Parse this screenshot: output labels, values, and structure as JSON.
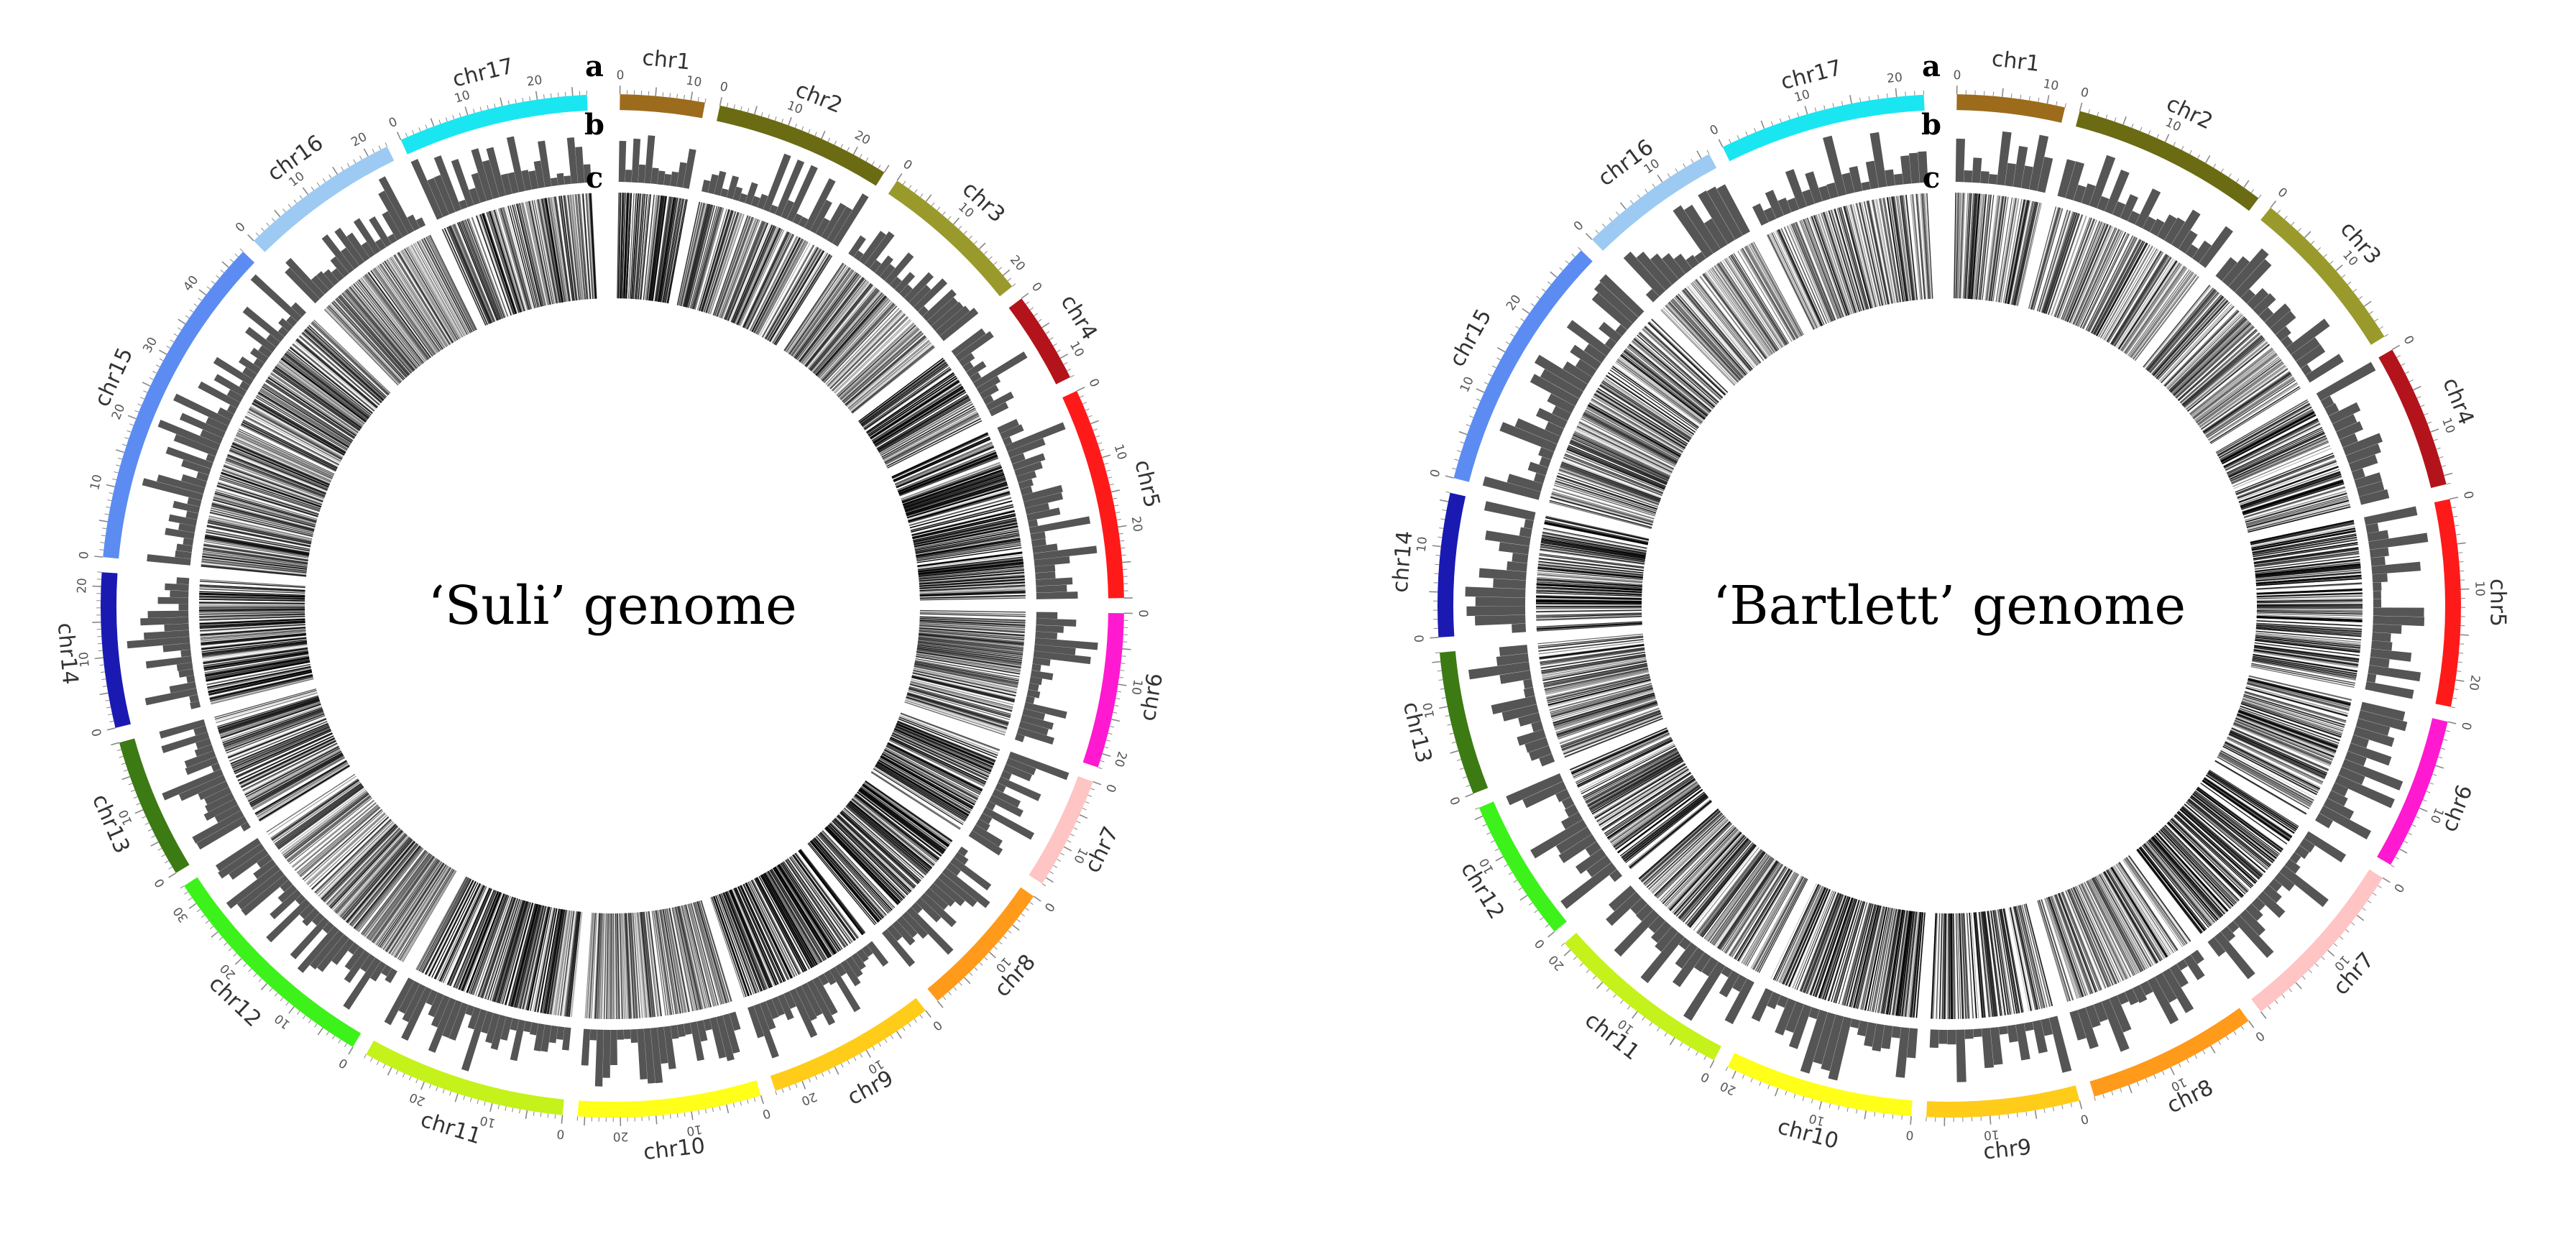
{
  "figure": {
    "track_labels": [
      "a",
      "b",
      "c"
    ],
    "panels": [
      {
        "title": "‘Suli’ genome",
        "chromosomes": [
          {
            "name": "chr1",
            "length": 12,
            "color": "#9c6b1c",
            "ticks": [
              0,
              10
            ]
          },
          {
            "name": "chr2",
            "length": 25,
            "color": "#6b6b14",
            "ticks": [
              0,
              10,
              20
            ]
          },
          {
            "name": "chr3",
            "length": 22,
            "color": "#9a9a2c",
            "ticks": [
              0,
              10,
              20
            ]
          },
          {
            "name": "chr4",
            "length": 13,
            "color": "#b3141b",
            "ticks": [
              0,
              10
            ]
          },
          {
            "name": "chr5",
            "length": 30,
            "color": "#ff1a1a",
            "ticks": [
              0,
              10,
              20
            ]
          },
          {
            "name": "chr6",
            "length": 22,
            "color": "#ff1ad1",
            "ticks": [
              0,
              10,
              20
            ]
          },
          {
            "name": "chr7",
            "length": 16,
            "color": "#ffc4c4",
            "ticks": [
              0,
              10
            ]
          },
          {
            "name": "chr8",
            "length": 20,
            "color": "#ff9a1a",
            "ticks": [
              0,
              10
            ]
          },
          {
            "name": "chr9",
            "length": 24,
            "color": "#ffcc1a",
            "ticks": [
              0,
              10,
              20
            ]
          },
          {
            "name": "chr10",
            "length": 26,
            "color": "#ffff1a",
            "ticks": [
              0,
              10,
              20
            ]
          },
          {
            "name": "chr11",
            "length": 29,
            "color": "#c4f21a",
            "ticks": [
              0,
              10,
              20
            ]
          },
          {
            "name": "chr12",
            "length": 33,
            "color": "#3cf21a",
            "ticks": [
              0,
              10,
              20,
              30
            ]
          },
          {
            "name": "chr13",
            "length": 20,
            "color": "#3c7a14",
            "ticks": [
              0,
              10
            ]
          },
          {
            "name": "chr14",
            "length": 22,
            "color": "#1a1ab3",
            "ticks": [
              0,
              10,
              20
            ]
          },
          {
            "name": "chr15",
            "length": 48,
            "color": "#5c8cf2",
            "ticks": [
              0,
              10,
              20,
              30,
              40
            ]
          },
          {
            "name": "chr16",
            "length": 23,
            "color": "#9ccaf2",
            "ticks": [
              0,
              10,
              20
            ]
          },
          {
            "name": "chr17",
            "length": 27,
            "color": "#1ae6f2",
            "ticks": [
              0,
              10,
              20
            ]
          }
        ]
      },
      {
        "title": "‘Bartlett’ genome",
        "chromosomes": [
          {
            "name": "chr1",
            "length": 12,
            "color": "#9c6b1c",
            "ticks": [
              0,
              10
            ]
          },
          {
            "name": "chr2",
            "length": 22,
            "color": "#6b6b14",
            "ticks": [
              0,
              10
            ]
          },
          {
            "name": "chr3",
            "length": 19,
            "color": "#9a9a2c",
            "ticks": [
              0,
              10
            ]
          },
          {
            "name": "chr4",
            "length": 16,
            "color": "#b3141b",
            "ticks": [
              0,
              10
            ]
          },
          {
            "name": "chr5",
            "length": 23,
            "color": "#ff1a1a",
            "ticks": [
              0,
              10,
              20
            ]
          },
          {
            "name": "chr6",
            "length": 17,
            "color": "#ff1ad1",
            "ticks": [
              0,
              10
            ]
          },
          {
            "name": "chr7",
            "length": 20,
            "color": "#ffc4c4",
            "ticks": [
              0,
              10
            ]
          },
          {
            "name": "chr8",
            "length": 19,
            "color": "#ff9a1a",
            "ticks": [
              0,
              10
            ]
          },
          {
            "name": "chr9",
            "length": 17,
            "color": "#ffcc1a",
            "ticks": [
              0,
              10
            ]
          },
          {
            "name": "chr10",
            "length": 21,
            "color": "#ffff1a",
            "ticks": [
              0,
              10,
              20
            ]
          },
          {
            "name": "chr11",
            "length": 21,
            "color": "#c4f21a",
            "ticks": [
              0,
              10,
              20
            ]
          },
          {
            "name": "chr12",
            "length": 16,
            "color": "#3cf21a",
            "ticks": [
              0,
              10
            ]
          },
          {
            "name": "chr13",
            "length": 16,
            "color": "#3c7a14",
            "ticks": [
              0,
              10
            ]
          },
          {
            "name": "chr14",
            "length": 16,
            "color": "#1a1ab3",
            "ticks": [
              0,
              10
            ]
          },
          {
            "name": "chr15",
            "length": 29,
            "color": "#5c8cf2",
            "ticks": [
              0,
              10,
              20
            ]
          },
          {
            "name": "chr16",
            "length": 16,
            "color": "#9ccaf2",
            "ticks": [
              0,
              10
            ]
          },
          {
            "name": "chr17",
            "length": 23,
            "color": "#1ae6f2",
            "ticks": [
              0,
              10,
              20
            ]
          }
        ]
      }
    ]
  },
  "colors": {
    "histogram": "#555555",
    "heatmap_line": "#000000",
    "tick": "#888888"
  }
}
